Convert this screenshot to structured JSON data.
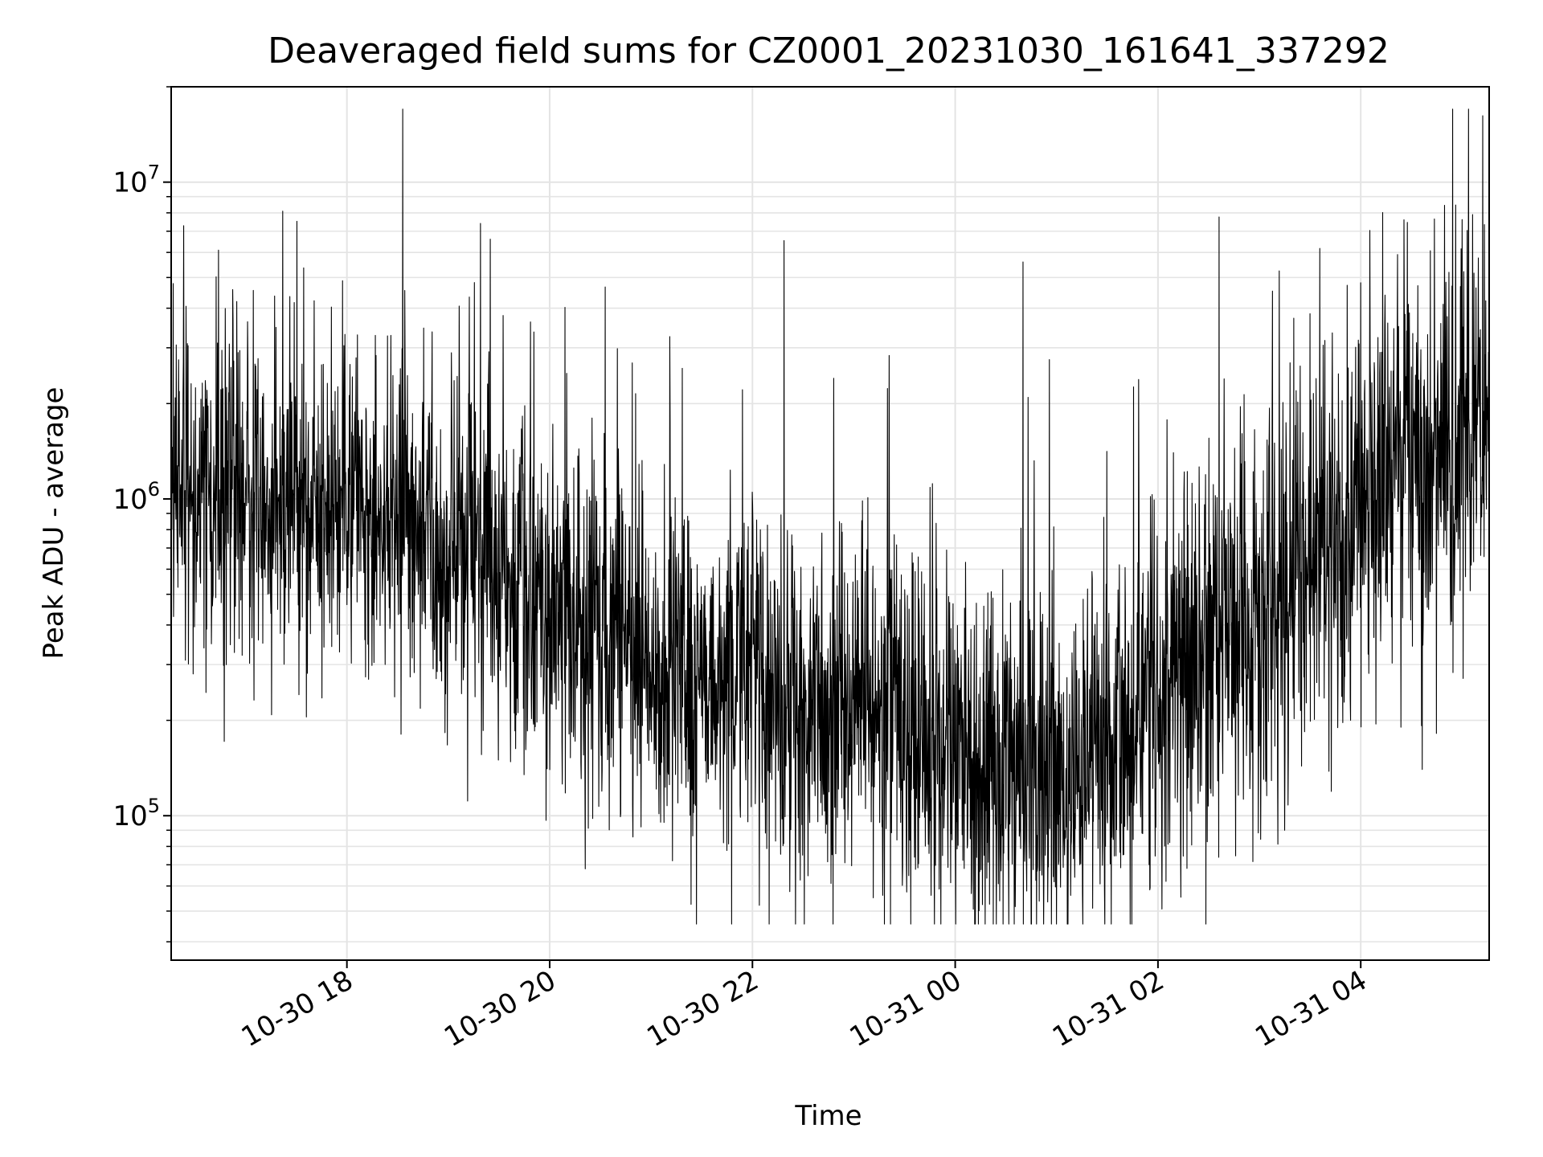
{
  "chart_data": {
    "type": "line",
    "title": "Deaveraged field sums for CZ0001_20231030_161641_337292",
    "xlabel": "Time",
    "ylabel": "Peak ADU - average",
    "yscale": "log",
    "ylim": [
      35000,
      20000000
    ],
    "xlim": [
      "2023-10-30 16:16",
      "2023-10-31 05:16"
    ],
    "grid": true,
    "line_color": "#000000",
    "x_ticks": [
      "10-30 18",
      "10-30 20",
      "10-30 22",
      "10-31 00",
      "10-31 02",
      "10-31 04"
    ],
    "y_ticks": [
      {
        "base": "10",
        "exp": "5",
        "value": 100000
      },
      {
        "base": "10",
        "exp": "6",
        "value": 1000000
      },
      {
        "base": "10",
        "exp": "7",
        "value": 10000000
      }
    ],
    "series": [
      {
        "x": [
          "2023-10-30 16:16",
          "2023-10-30 17:00",
          "2023-10-30 18:00",
          "2023-10-30 18:30",
          "2023-10-30 19:00",
          "2023-10-30 19:30",
          "2023-10-30 20:00",
          "2023-10-30 21:00",
          "2023-10-30 22:00",
          "2023-10-30 23:00",
          "2023-10-31 00:00",
          "2023-10-31 01:00",
          "2023-10-31 02:00",
          "2023-10-31 03:00",
          "2023-10-31 04:00",
          "2023-10-31 05:16"
        ],
        "y": [
          1000000,
          1000000,
          900000,
          900000,
          700000,
          600000,
          400000,
          300000,
          250000,
          200000,
          160000,
          130000,
          220000,
          400000,
          1000000,
          1700000
        ]
      }
    ]
  }
}
